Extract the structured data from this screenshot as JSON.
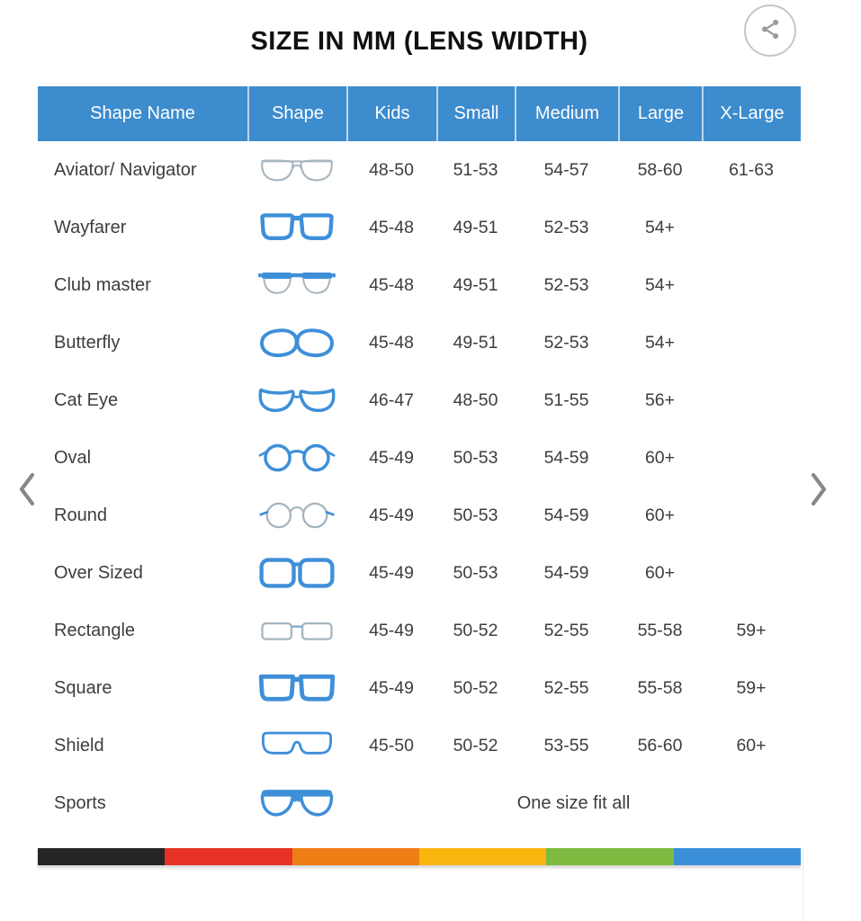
{
  "title": "SIZE IN MM (LENS WIDTH)",
  "share_button": {
    "icon": "share-icon"
  },
  "carousel": {
    "prev_icon": "chevron-left-icon",
    "next_icon": "chevron-right-icon"
  },
  "chart_data": {
    "type": "table",
    "title": "SIZE IN MM (LENS WIDTH)",
    "columns": [
      "Shape Name",
      "Shape",
      "Kids",
      "Small",
      "Medium",
      "Large",
      "X-Large"
    ],
    "rows": [
      {
        "name": "Aviator/ Navigator",
        "icon": "aviator-glasses-icon",
        "sizes": [
          "48-50",
          "51-53",
          "54-57",
          "58-60",
          "61-63"
        ]
      },
      {
        "name": "Wayfarer",
        "icon": "wayfarer-glasses-icon",
        "sizes": [
          "45-48",
          "49-51",
          "52-53",
          "54+",
          ""
        ]
      },
      {
        "name": "Club master",
        "icon": "clubmaster-glasses-icon",
        "sizes": [
          "45-48",
          "49-51",
          "52-53",
          "54+",
          ""
        ]
      },
      {
        "name": "Butterfly",
        "icon": "butterfly-glasses-icon",
        "sizes": [
          "45-48",
          "49-51",
          "52-53",
          "54+",
          ""
        ]
      },
      {
        "name": "Cat Eye",
        "icon": "cateye-glasses-icon",
        "sizes": [
          "46-47",
          "48-50",
          "51-55",
          "56+",
          ""
        ]
      },
      {
        "name": "Oval",
        "icon": "oval-glasses-icon",
        "sizes": [
          "45-49",
          "50-53",
          "54-59",
          "60+",
          ""
        ]
      },
      {
        "name": "Round",
        "icon": "round-glasses-icon",
        "sizes": [
          "45-49",
          "50-53",
          "54-59",
          "60+",
          ""
        ]
      },
      {
        "name": "Over Sized",
        "icon": "oversized-glasses-icon",
        "sizes": [
          "45-49",
          "50-53",
          "54-59",
          "60+",
          ""
        ]
      },
      {
        "name": "Rectangle",
        "icon": "rectangle-glasses-icon",
        "sizes": [
          "45-49",
          "50-52",
          "52-55",
          "55-58",
          "59+"
        ]
      },
      {
        "name": "Square",
        "icon": "square-glasses-icon",
        "sizes": [
          "45-49",
          "50-52",
          "52-55",
          "55-58",
          "59+"
        ]
      },
      {
        "name": "Shield",
        "icon": "shield-glasses-icon",
        "sizes": [
          "45-50",
          "50-52",
          "53-55",
          "56-60",
          "60+"
        ]
      },
      {
        "name": "Sports",
        "icon": "sports-glasses-icon",
        "sizes": [],
        "note": "One size fit all"
      }
    ]
  },
  "colors": {
    "header_bg": "#3D8CCE",
    "header_divider": "rgba(255,255,255,0.65)",
    "frame_blue": "#3E8FD8",
    "frame_light": "#A6B5BF",
    "text": "#3d3d3d",
    "bar_segments": [
      "#262424",
      "#E63227",
      "#EF7D15",
      "#FBB50F",
      "#7CBB3F",
      "#3A8FD9"
    ]
  }
}
